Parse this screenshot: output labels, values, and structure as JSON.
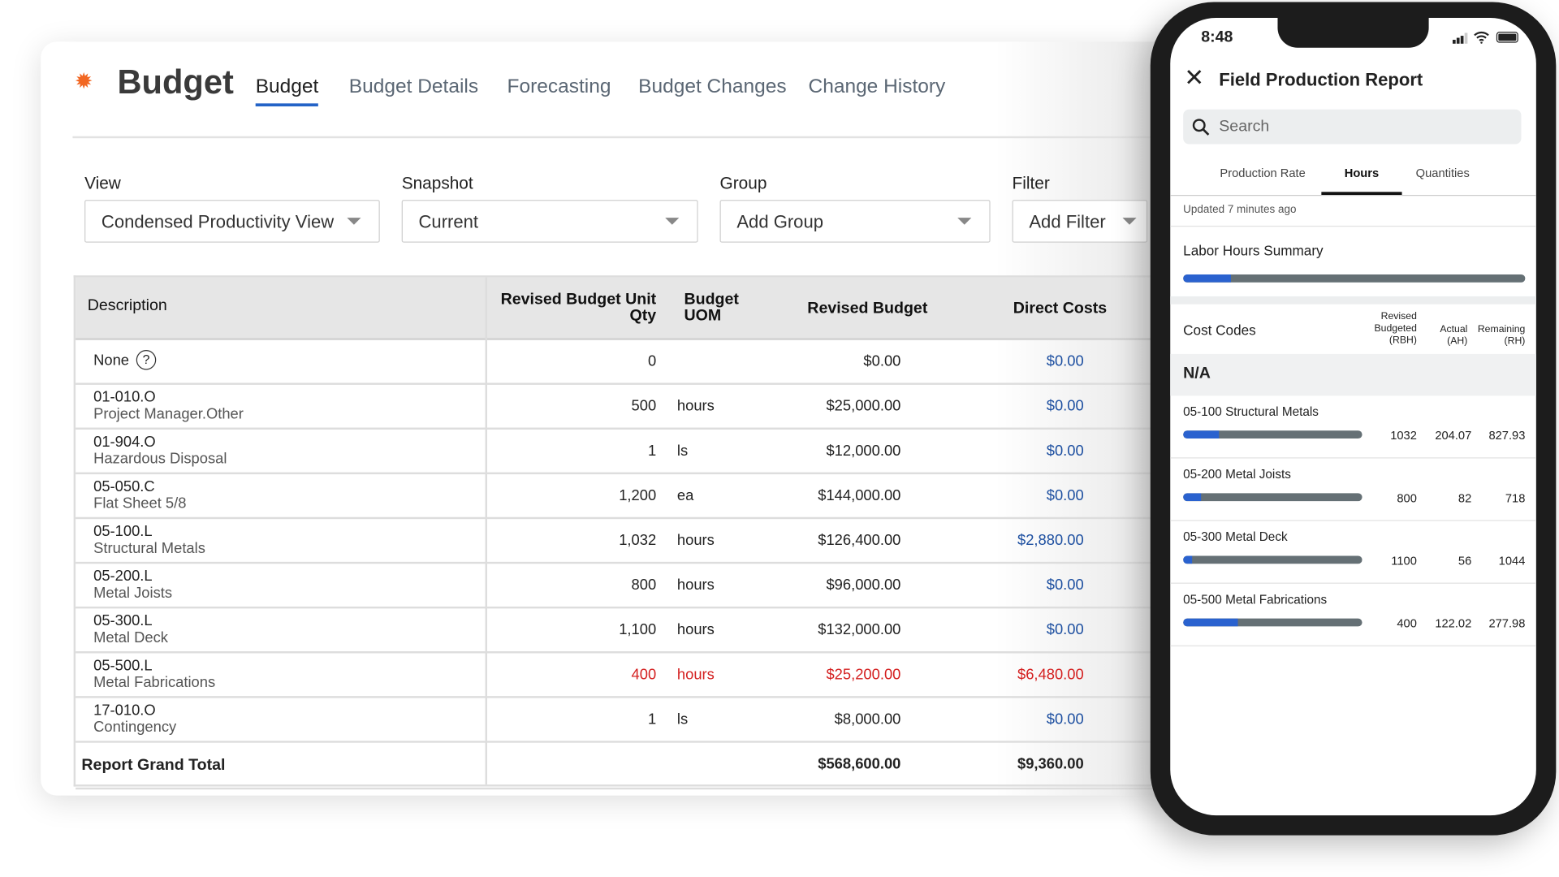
{
  "budget_app": {
    "title": "Budget",
    "logo_icon": "gear-icon",
    "accent_color": "#f26722",
    "tabs": [
      {
        "label": "Budget",
        "active": true
      },
      {
        "label": "Budget Details"
      },
      {
        "label": "Forecasting"
      },
      {
        "label": "Budget Changes"
      },
      {
        "label": "Change History"
      }
    ],
    "controls": {
      "view": {
        "label": "View",
        "value": "Condensed Productivity View"
      },
      "snapshot": {
        "label": "Snapshot",
        "value": "Current"
      },
      "group": {
        "label": "Group",
        "value": "Add Group"
      },
      "filter": {
        "label": "Filter",
        "value": "Add Filter"
      }
    },
    "table": {
      "headers": {
        "description": "Description",
        "qty": "Revised Budget Unit Qty",
        "uom": "Budget UOM",
        "revised_budget": "Revised Budget",
        "direct_costs": "Direct Costs"
      },
      "rows": [
        {
          "code": "None",
          "desc": "",
          "qty": "0",
          "uom": "",
          "revised_budget": "$0.00",
          "direct_costs": "$0.00",
          "help_icon": true
        },
        {
          "code": "01-010.O",
          "desc": "Project Manager.Other",
          "qty": "500",
          "uom": "hours",
          "revised_budget": "$25,000.00",
          "direct_costs": "$0.00"
        },
        {
          "code": "01-904.O",
          "desc": "Hazardous Disposal",
          "qty": "1",
          "uom": "ls",
          "revised_budget": "$12,000.00",
          "direct_costs": "$0.00"
        },
        {
          "code": "05-050.C",
          "desc": "Flat Sheet 5/8",
          "qty": "1,200",
          "uom": "ea",
          "revised_budget": "$144,000.00",
          "direct_costs": "$0.00"
        },
        {
          "code": "05-100.L",
          "desc": "Structural Metals",
          "qty": "1,032",
          "uom": "hours",
          "revised_budget": "$126,400.00",
          "direct_costs": "$2,880.00"
        },
        {
          "code": "05-200.L",
          "desc": "Metal Joists",
          "qty": "800",
          "uom": "hours",
          "revised_budget": "$96,000.00",
          "direct_costs": "$0.00"
        },
        {
          "code": "05-300.L",
          "desc": "Metal Deck",
          "qty": "1,100",
          "uom": "hours",
          "revised_budget": "$132,000.00",
          "direct_costs": "$0.00"
        },
        {
          "code": "05-500.L",
          "desc": "Metal Fabrications",
          "qty": "400",
          "uom": "hours",
          "revised_budget": "$25,200.00",
          "direct_costs": "$6,480.00",
          "highlight": "#d42020"
        },
        {
          "code": "17-010.O",
          "desc": "Contingency",
          "qty": "1",
          "uom": "ls",
          "revised_budget": "$8,000.00",
          "direct_costs": "$0.00"
        }
      ],
      "total": {
        "label": "Report Grand Total",
        "revised_budget": "$568,600.00",
        "direct_costs": "$9,360.00"
      }
    }
  },
  "phone": {
    "time": "8:48",
    "title": "Field Production Report",
    "search_placeholder": "Search",
    "tabs": [
      {
        "label": "Production Rate"
      },
      {
        "label": "Hours",
        "active": true
      },
      {
        "label": "Quantities"
      }
    ],
    "updated": "Updated 7 minutes ago",
    "summary": {
      "label": "Labor Hours Summary",
      "progress": 0.14
    },
    "cost_codes_header": {
      "label": "Cost Codes",
      "rbh": "Revised Budgeted (RBH)",
      "ah": "Actual (AH)",
      "rh": "Remaining (RH)"
    },
    "group": "N/A",
    "items": [
      {
        "name": "05-100 Structural Metals",
        "rbh": "1032",
        "ah": "204.07",
        "rh": "827.93",
        "progress": 0.198
      },
      {
        "name": "05-200 Metal Joists",
        "rbh": "800",
        "ah": "82",
        "rh": "718",
        "progress": 0.1025
      },
      {
        "name": "05-300 Metal Deck",
        "rbh": "1100",
        "ah": "56",
        "rh": "1044",
        "progress": 0.051
      },
      {
        "name": "05-500 Metal Fabrications",
        "rbh": "400",
        "ah": "122.02",
        "rh": "277.98",
        "progress": 0.305
      }
    ],
    "colors": {
      "progress_fill": "#2a62cf",
      "progress_track": "#657075"
    }
  }
}
